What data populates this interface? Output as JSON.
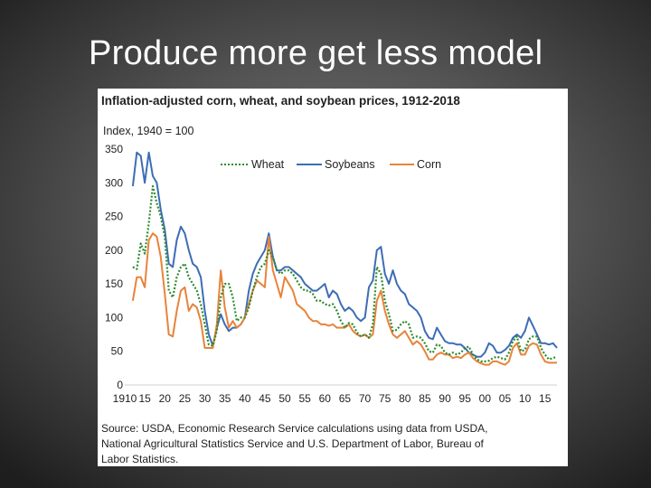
{
  "slide": {
    "title": "Produce more get less model"
  },
  "colors": {
    "wheat": "#2e8b2e",
    "soybeans": "#3d6db5",
    "corn": "#e8833a",
    "background_card": "#ffffff"
  },
  "chart_data": {
    "type": "line",
    "title": "Inflation-adjusted corn, wheat, and soybean prices, 1912-2018",
    "ylabel": "Index, 1940 = 100",
    "xlabel": "",
    "ylim": [
      0,
      350
    ],
    "xlim": [
      1910,
      2018
    ],
    "y_ticks": [
      0,
      50,
      100,
      150,
      200,
      250,
      300,
      350
    ],
    "x_ticks": [
      1910,
      1915,
      1920,
      1925,
      1930,
      1935,
      1940,
      1945,
      1950,
      1955,
      1960,
      1965,
      1970,
      1975,
      1980,
      1985,
      1990,
      1995,
      2000,
      2005,
      2010,
      2015
    ],
    "x_tick_labels": [
      "1910",
      "15",
      "20",
      "25",
      "30",
      "35",
      "40",
      "45",
      "50",
      "55",
      "60",
      "65",
      "70",
      "75",
      "80",
      "85",
      "90",
      "95",
      "00",
      "05",
      "10",
      "15"
    ],
    "legend": [
      "Wheat",
      "Soybeans",
      "Corn"
    ],
    "legend_position": "top-center",
    "grid": false,
    "source": "Source: USDA, Economic Research Service calculations using data from USDA, National Agricultural Statistics Service and U.S. Department of Labor, Bureau of Labor Statistics.",
    "series": [
      {
        "name": "Wheat",
        "style": "dotted",
        "x": [
          1912,
          1913,
          1914,
          1915,
          1916,
          1917,
          1918,
          1919,
          1920,
          1921,
          1922,
          1923,
          1924,
          1925,
          1926,
          1927,
          1928,
          1929,
          1930,
          1931,
          1932,
          1933,
          1934,
          1935,
          1936,
          1937,
          1938,
          1939,
          1940,
          1941,
          1942,
          1943,
          1944,
          1945,
          1946,
          1947,
          1948,
          1949,
          1950,
          1951,
          1952,
          1953,
          1954,
          1955,
          1956,
          1957,
          1958,
          1959,
          1960,
          1961,
          1962,
          1963,
          1964,
          1965,
          1966,
          1967,
          1968,
          1969,
          1970,
          1971,
          1972,
          1973,
          1974,
          1975,
          1976,
          1977,
          1978,
          1979,
          1980,
          1981,
          1982,
          1983,
          1984,
          1985,
          1986,
          1987,
          1988,
          1989,
          1990,
          1991,
          1992,
          1993,
          1994,
          1995,
          1996,
          1997,
          1998,
          1999,
          2000,
          2001,
          2002,
          2003,
          2004,
          2005,
          2006,
          2007,
          2008,
          2009,
          2010,
          2011,
          2012,
          2013,
          2014,
          2015,
          2016,
          2017,
          2018
        ],
        "values": [
          175,
          172,
          210,
          195,
          240,
          295,
          270,
          250,
          220,
          140,
          130,
          160,
          175,
          180,
          160,
          150,
          140,
          120,
          90,
          60,
          58,
          80,
          130,
          150,
          150,
          130,
          95,
          100,
          100,
          115,
          140,
          160,
          175,
          180,
          200,
          190,
          170,
          165,
          170,
          170,
          165,
          155,
          145,
          140,
          140,
          135,
          125,
          125,
          120,
          118,
          120,
          110,
          95,
          85,
          92,
          90,
          78,
          72,
          75,
          70,
          90,
          175,
          165,
          125,
          105,
          80,
          82,
          90,
          95,
          90,
          70,
          72,
          70,
          62,
          50,
          48,
          60,
          58,
          48,
          45,
          48,
          45,
          48,
          55,
          57,
          45,
          38,
          35,
          35,
          36,
          40,
          42,
          40,
          38,
          48,
          65,
          72,
          50,
          52,
          68,
          72,
          72,
          55,
          45,
          38,
          40,
          42
        ]
      },
      {
        "name": "Soybeans",
        "style": "solid",
        "x": [
          1912,
          1913,
          1914,
          1915,
          1916,
          1917,
          1918,
          1919,
          1920,
          1921,
          1922,
          1923,
          1924,
          1925,
          1926,
          1927,
          1928,
          1929,
          1930,
          1931,
          1932,
          1933,
          1934,
          1935,
          1936,
          1937,
          1938,
          1939,
          1940,
          1941,
          1942,
          1943,
          1944,
          1945,
          1946,
          1947,
          1948,
          1949,
          1950,
          1951,
          1952,
          1953,
          1954,
          1955,
          1956,
          1957,
          1958,
          1959,
          1960,
          1961,
          1962,
          1963,
          1964,
          1965,
          1966,
          1967,
          1968,
          1969,
          1970,
          1971,
          1972,
          1973,
          1974,
          1975,
          1976,
          1977,
          1978,
          1979,
          1980,
          1981,
          1982,
          1983,
          1984,
          1985,
          1986,
          1987,
          1988,
          1989,
          1990,
          1991,
          1992,
          1993,
          1994,
          1995,
          1996,
          1997,
          1998,
          1999,
          2000,
          2001,
          2002,
          2003,
          2004,
          2005,
          2006,
          2007,
          2008,
          2009,
          2010,
          2011,
          2012,
          2013,
          2014,
          2015,
          2016,
          2017,
          2018
        ],
        "values": [
          295,
          345,
          340,
          300,
          345,
          310,
          300,
          260,
          230,
          180,
          175,
          215,
          235,
          225,
          200,
          180,
          175,
          160,
          110,
          75,
          58,
          85,
          105,
          90,
          80,
          85,
          85,
          90,
          100,
          140,
          165,
          180,
          190,
          200,
          225,
          190,
          170,
          170,
          175,
          175,
          170,
          165,
          160,
          150,
          145,
          140,
          140,
          145,
          150,
          130,
          140,
          135,
          120,
          110,
          115,
          110,
          100,
          95,
          100,
          145,
          155,
          200,
          205,
          165,
          150,
          170,
          150,
          140,
          135,
          120,
          115,
          110,
          100,
          80,
          70,
          68,
          85,
          75,
          65,
          62,
          62,
          60,
          60,
          55,
          48,
          45,
          42,
          42,
          48,
          62,
          58,
          48,
          48,
          52,
          58,
          70,
          75,
          70,
          80,
          100,
          88,
          75,
          62,
          62,
          60,
          62,
          55
        ]
      },
      {
        "name": "Corn",
        "style": "solid",
        "x": [
          1912,
          1913,
          1914,
          1915,
          1916,
          1917,
          1918,
          1919,
          1920,
          1921,
          1922,
          1923,
          1924,
          1925,
          1926,
          1927,
          1928,
          1929,
          1930,
          1931,
          1932,
          1933,
          1934,
          1935,
          1936,
          1937,
          1938,
          1939,
          1940,
          1941,
          1942,
          1943,
          1944,
          1945,
          1946,
          1947,
          1948,
          1949,
          1950,
          1951,
          1952,
          1953,
          1954,
          1955,
          1956,
          1957,
          1958,
          1959,
          1960,
          1961,
          1962,
          1963,
          1964,
          1965,
          1966,
          1967,
          1968,
          1969,
          1970,
          1971,
          1972,
          1973,
          1974,
          1975,
          1976,
          1977,
          1978,
          1979,
          1980,
          1981,
          1982,
          1983,
          1984,
          1985,
          1986,
          1987,
          1988,
          1989,
          1990,
          1991,
          1992,
          1993,
          1994,
          1995,
          1996,
          1997,
          1998,
          1999,
          2000,
          2001,
          2002,
          2003,
          2004,
          2005,
          2006,
          2007,
          2008,
          2009,
          2010,
          2011,
          2012,
          2013,
          2014,
          2015,
          2016,
          2017,
          2018
        ],
        "values": [
          125,
          160,
          160,
          145,
          215,
          225,
          220,
          190,
          135,
          75,
          72,
          110,
          140,
          145,
          110,
          120,
          115,
          95,
          55,
          55,
          55,
          90,
          170,
          115,
          85,
          95,
          85,
          90,
          100,
          120,
          140,
          155,
          150,
          145,
          220,
          170,
          150,
          130,
          160,
          150,
          140,
          120,
          115,
          110,
          100,
          95,
          95,
          90,
          90,
          88,
          90,
          85,
          85,
          85,
          90,
          80,
          75,
          72,
          75,
          70,
          75,
          125,
          140,
          110,
          90,
          75,
          70,
          75,
          80,
          70,
          60,
          65,
          60,
          50,
          38,
          38,
          45,
          48,
          45,
          45,
          40,
          42,
          40,
          45,
          48,
          40,
          35,
          32,
          30,
          30,
          35,
          35,
          32,
          30,
          35,
          55,
          62,
          45,
          45,
          58,
          62,
          60,
          45,
          35,
          33,
          33,
          33
        ]
      }
    ]
  }
}
